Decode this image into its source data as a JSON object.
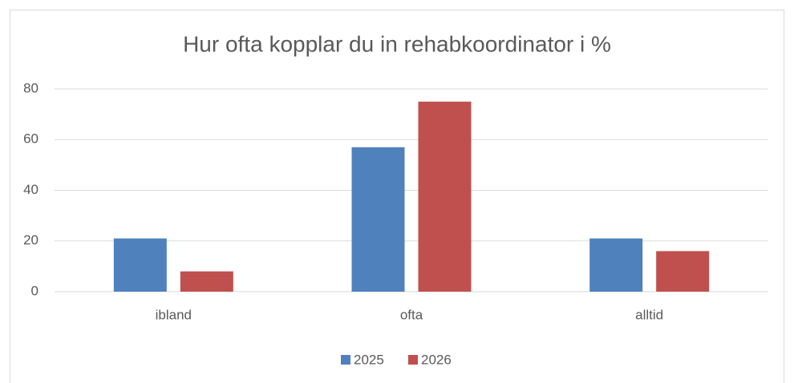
{
  "chart_data": {
    "type": "bar",
    "title": "Hur ofta kopplar du in rehabkoordinator i %",
    "categories": [
      "ibland",
      "ofta",
      "alltid"
    ],
    "series": [
      {
        "name": "2025",
        "color": "#4f81bd",
        "values": [
          21,
          57,
          21
        ]
      },
      {
        "name": "2026",
        "color": "#c0504d",
        "values": [
          8,
          75,
          16
        ]
      }
    ],
    "ylim": [
      0,
      80
    ],
    "yticks": [
      0,
      20,
      40,
      60,
      80
    ],
    "grid": true,
    "legend": "bottom"
  }
}
